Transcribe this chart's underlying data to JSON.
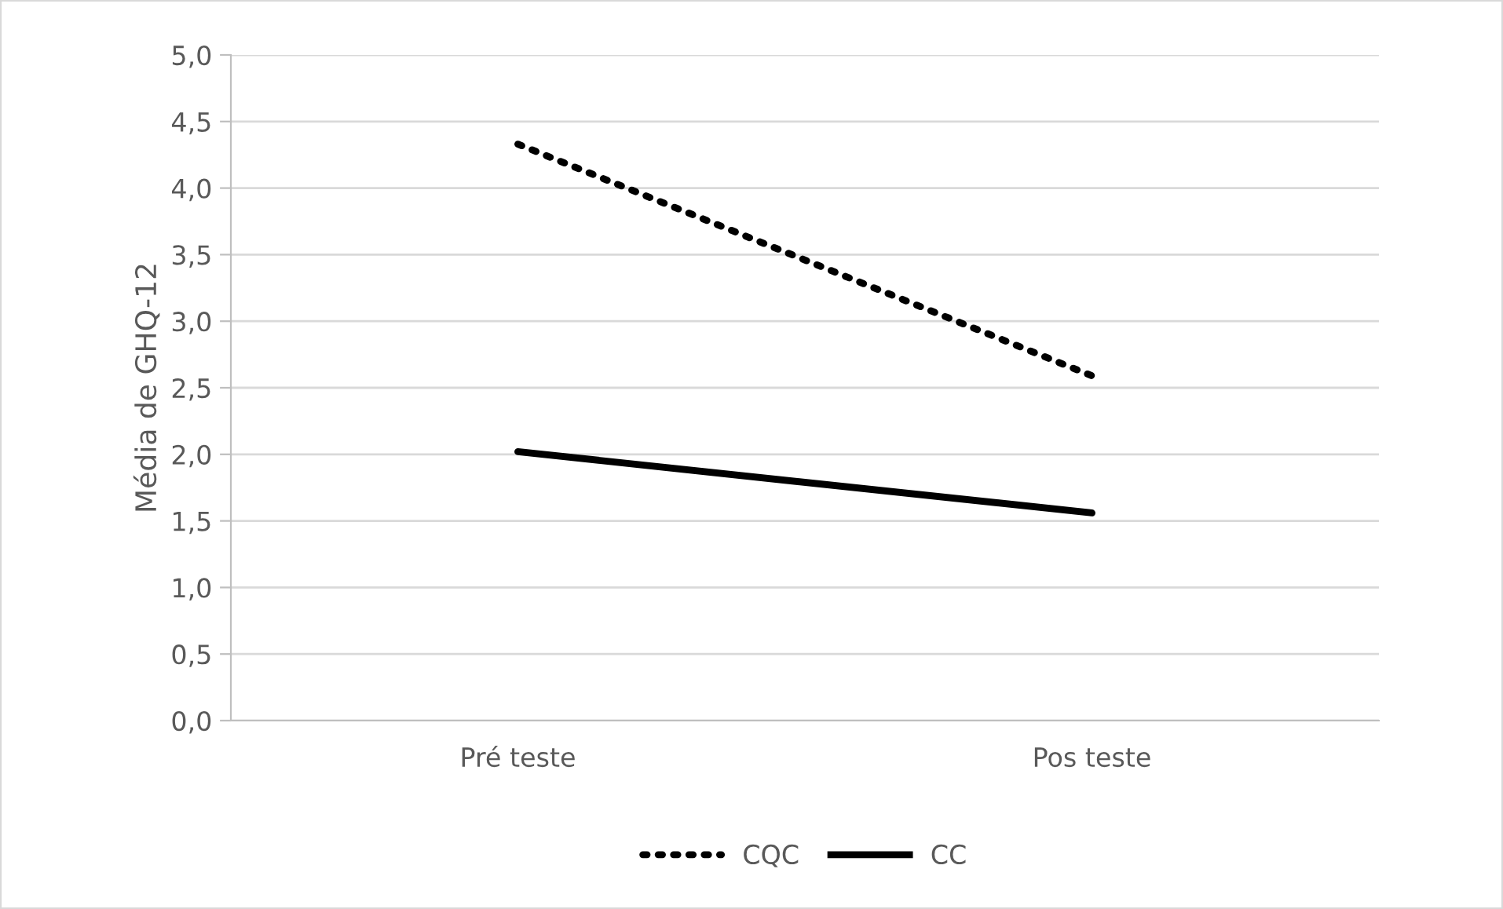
{
  "chart_data": {
    "type": "line",
    "ylabel": "Média de GHQ-12",
    "categories": [
      "Pré teste",
      "Pos teste"
    ],
    "series": [
      {
        "name": "CQC",
        "color": "#000000",
        "values": [
          4.33,
          2.59
        ],
        "line_style": "dotted"
      },
      {
        "name": "CC",
        "color": "#000000",
        "values": [
          2.02,
          1.56
        ],
        "line_style": "solid"
      }
    ],
    "ylim": [
      0,
      5
    ],
    "yticks": [
      {
        "value": 0,
        "label": "0,0"
      },
      {
        "value": 0.5,
        "label": "0,5"
      },
      {
        "value": 1,
        "label": "1,0"
      },
      {
        "value": 1.5,
        "label": "1,5"
      },
      {
        "value": 2,
        "label": "2,0"
      },
      {
        "value": 2.5,
        "label": "2,5"
      },
      {
        "value": 3,
        "label": "3,0"
      },
      {
        "value": 3.5,
        "label": "3,5"
      },
      {
        "value": 4,
        "label": "4,0"
      },
      {
        "value": 4.5,
        "label": "4,5"
      },
      {
        "value": 5,
        "label": "5,0"
      }
    ],
    "grid": "y",
    "legend": "bottom",
    "marker": "none"
  }
}
